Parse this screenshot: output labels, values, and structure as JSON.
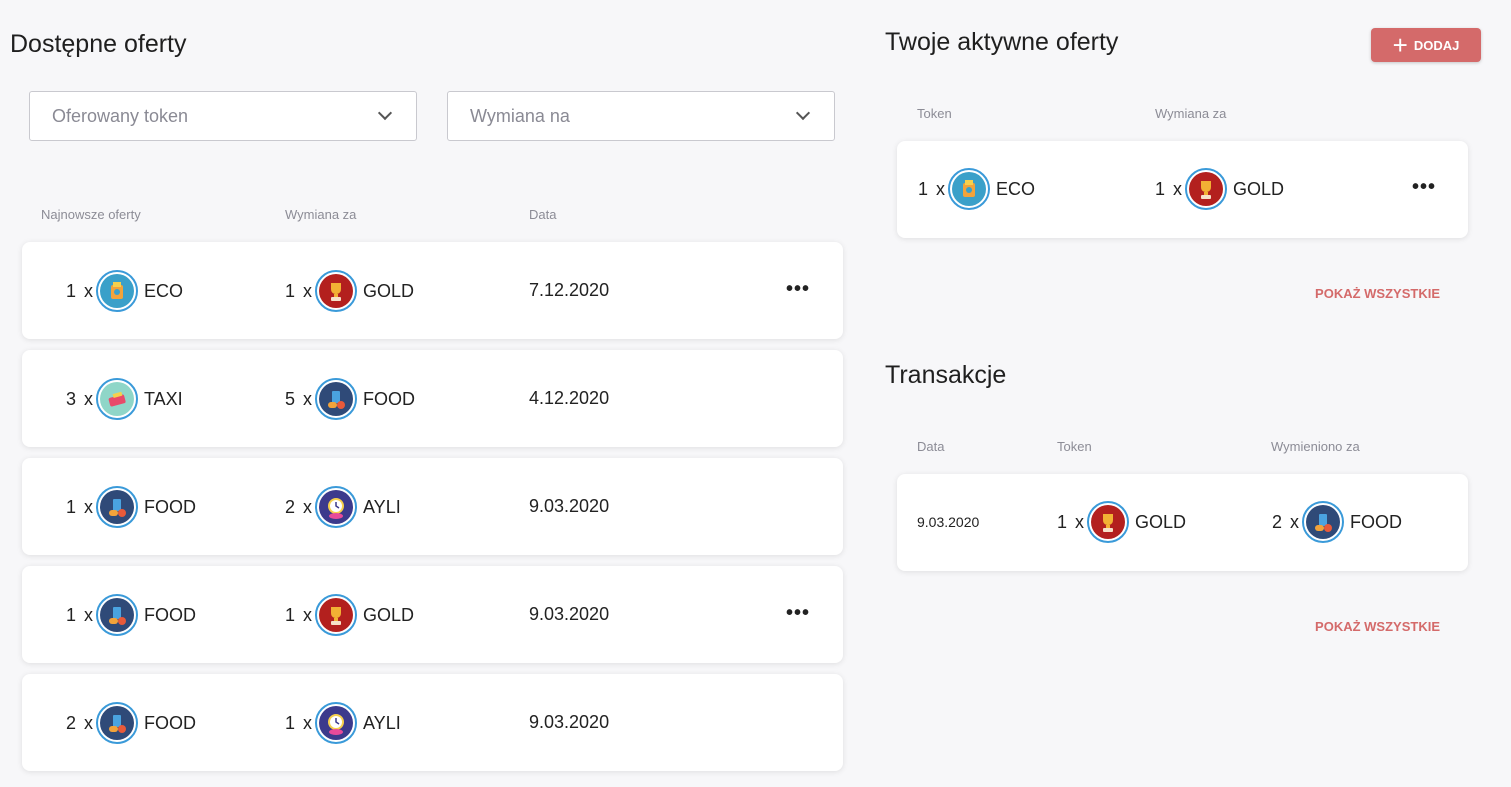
{
  "available": {
    "title": "Dostępne oferty",
    "filter_offered": "Oferowany token",
    "filter_exchange": "Wymiana na",
    "col_newest": "Najnowsze oferty",
    "col_exchange": "Wymiana za",
    "col_date": "Data",
    "rows": [
      {
        "qty": "1",
        "x": "x",
        "token": "ECO",
        "ex_qty": "1",
        "ex_x": "x",
        "ex_token": "GOLD",
        "date": "7.12.2020",
        "more": "•••"
      },
      {
        "qty": "3",
        "x": "x",
        "token": "TAXI",
        "ex_qty": "5",
        "ex_x": "x",
        "ex_token": "FOOD",
        "date": "4.12.2020"
      },
      {
        "qty": "1",
        "x": "x",
        "token": "FOOD",
        "ex_qty": "2",
        "ex_x": "x",
        "ex_token": "AYLI",
        "date": "9.03.2020"
      },
      {
        "qty": "1",
        "x": "x",
        "token": "FOOD",
        "ex_qty": "1",
        "ex_x": "x",
        "ex_token": "GOLD",
        "date": "9.03.2020",
        "more": "•••"
      },
      {
        "qty": "2",
        "x": "x",
        "token": "FOOD",
        "ex_qty": "1",
        "ex_x": "x",
        "ex_token": "AYLI",
        "date": "9.03.2020"
      }
    ]
  },
  "active": {
    "title": "Twoje aktywne oferty",
    "add_label": "DODAJ",
    "add_plus": "+",
    "col_token": "Token",
    "col_exchange": "Wymiana za",
    "row": {
      "qty": "1",
      "x": "x",
      "token": "ECO",
      "ex_qty": "1",
      "ex_x": "x",
      "ex_token": "GOLD",
      "more": "•••"
    },
    "show_all": "POKAŻ WSZYSTKIE"
  },
  "transactions": {
    "title": "Transakcje",
    "col_date": "Data",
    "col_token": "Token",
    "col_exchanged": "Wymieniono za",
    "row": {
      "date": "9.03.2020",
      "qty": "1",
      "x": "x",
      "token": "GOLD",
      "ex_qty": "2",
      "ex_x": "x",
      "ex_token": "FOOD"
    },
    "show_all": "POKAŻ WSZYSTKIE"
  },
  "icons": {
    "eco": "eco-token-icon",
    "gold": "gold-token-icon",
    "taxi": "taxi-token-icon",
    "food": "food-token-icon",
    "ayli": "ayli-token-icon",
    "owner": "user-check-icon",
    "chevron": "chevron-down-icon"
  },
  "colors": {
    "accent": "#d46a6a",
    "coin_border": "#3a9ad9",
    "eco": "#3aa0c9",
    "gold": "#b3201e",
    "taxi": "#8fd6c8",
    "food": "#2f4a78",
    "ayli": "#3c3a8c"
  }
}
